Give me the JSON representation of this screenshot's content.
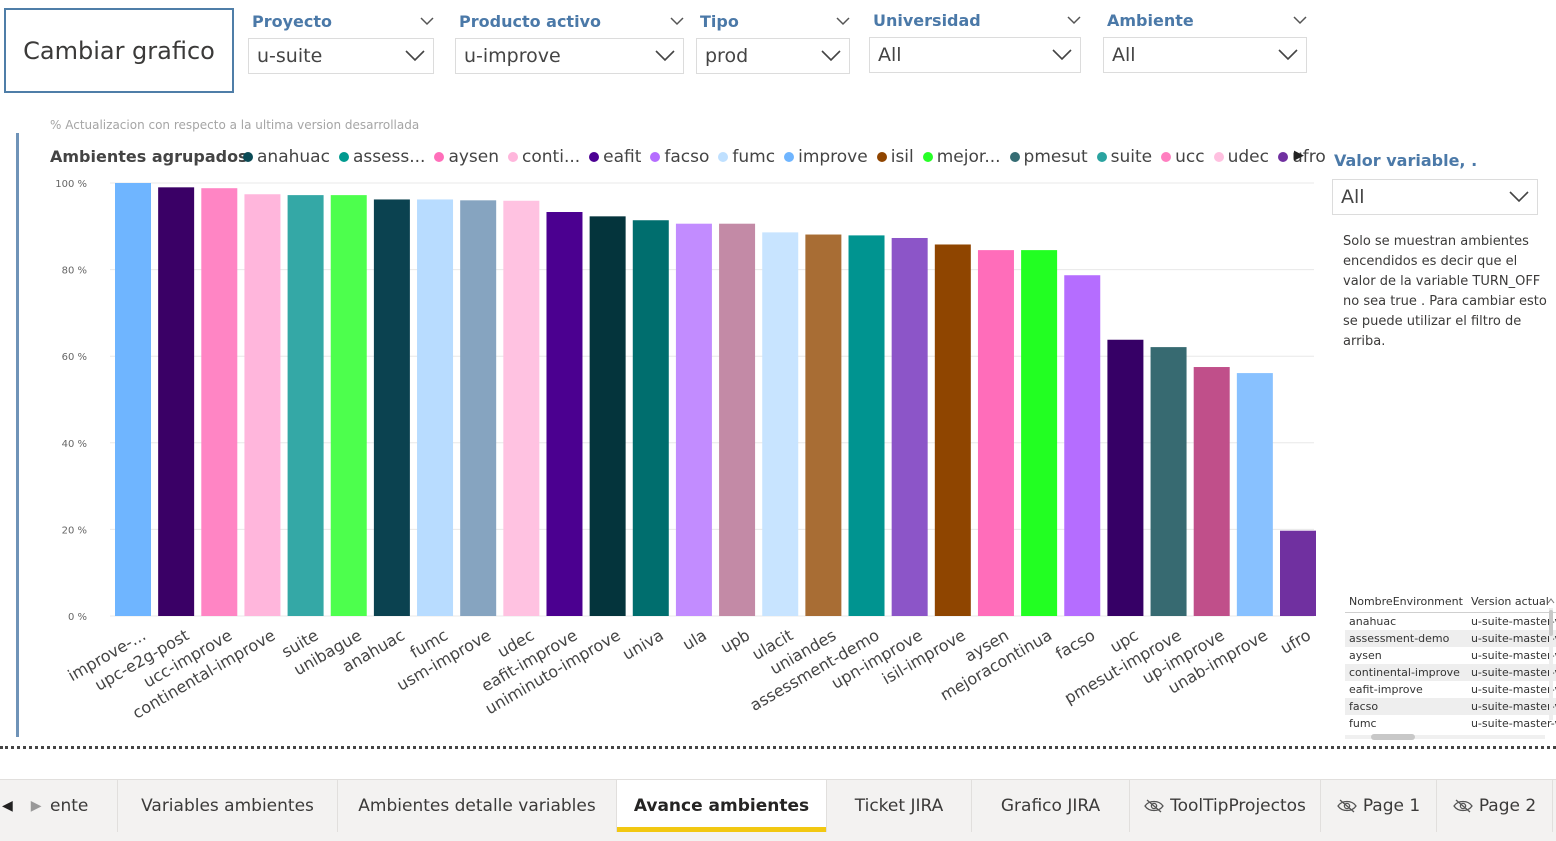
{
  "change_chart_button": "Cambiar grafico",
  "slicers": [
    {
      "title": "Proyecto",
      "value": "u-suite"
    },
    {
      "title": "Producto activo",
      "value": "u-improve"
    },
    {
      "title": "Tipo",
      "value": "prod"
    },
    {
      "title": "Universidad",
      "value": "All"
    },
    {
      "title": "Ambiente",
      "value": "All"
    }
  ],
  "chart": {
    "subtitle": "% Actualizacion con respecto a la ultima version desarrollada",
    "legend_title": "Ambientes agrupados",
    "legend": [
      {
        "label": "anahuac",
        "color": "#0b4a55"
      },
      {
        "label": "assess...",
        "color": "#009a8f"
      },
      {
        "label": "aysen",
        "color": "#ff6fba"
      },
      {
        "label": "conti...",
        "color": "#ffb6dc"
      },
      {
        "label": "eafit",
        "color": "#4b0093"
      },
      {
        "label": "facso",
        "color": "#b56dff"
      },
      {
        "label": "fumc",
        "color": "#bfe0ff"
      },
      {
        "label": "improve",
        "color": "#6fb5ff"
      },
      {
        "label": "isil",
        "color": "#8f4500"
      },
      {
        "label": "mejor...",
        "color": "#27ff27"
      },
      {
        "label": "pmesut",
        "color": "#356c73"
      },
      {
        "label": "suite",
        "color": "#2aa3a0"
      },
      {
        "label": "ucc",
        "color": "#ff7fc0"
      },
      {
        "label": "udec",
        "color": "#ffc0e0"
      },
      {
        "label": "ufro",
        "color": "#7030a0"
      }
    ]
  },
  "chart_data": {
    "type": "bar",
    "categories": [
      "improve-...",
      "upc-e2g-post",
      "ucc-improve",
      "continental-improve",
      "suite",
      "unibague",
      "anahuac",
      "fumc",
      "usm-improve",
      "udec",
      "eafit-improve",
      "uniminuto-improve",
      "univa",
      "ula",
      "upb",
      "ulacit",
      "uniandes",
      "assessment-demo",
      "upn-improve",
      "isil-improve",
      "aysen",
      "mejoracontinua",
      "facso",
      "upc",
      "pmesut-improve",
      "up-improve",
      "unab-improve",
      "ufro"
    ],
    "values": [
      100,
      99,
      98.8,
      97.4,
      97.2,
      97.2,
      96.2,
      96.2,
      96,
      95.9,
      93.3,
      92.3,
      91.4,
      90.6,
      90.6,
      88.6,
      88.1,
      87.9,
      87.3,
      85.8,
      84.5,
      84.5,
      78.7,
      63.8,
      62.1,
      57.5,
      56.1,
      19.7
    ],
    "colors": [
      "#6fb5ff",
      "#3a0066",
      "#ff85c4",
      "#ffb6dc",
      "#34a8a6",
      "#4dff4d",
      "#0b4250",
      "#b8dcff",
      "#86a4c0",
      "#ffc2e1",
      "#4b0090",
      "#04343c",
      "#006e6e",
      "#c28cff",
      "#c38aa6",
      "#c8e4ff",
      "#a86d34",
      "#009490",
      "#8c55c8",
      "#8f4500",
      "#ff6dba",
      "#22ff22",
      "#b56dff",
      "#360066",
      "#376a71",
      "#c04f8a",
      "#88c1ff",
      "#7030a0"
    ],
    "ylim": [
      0,
      100
    ],
    "yticks": [
      "0 %",
      "20 %",
      "40 %",
      "60 %",
      "80 %",
      "100 %"
    ],
    "xlabel": "",
    "ylabel": "",
    "grid": true
  },
  "side_panel": {
    "title": "Valor variable, .",
    "dropdown_value": "All",
    "note": "Solo se muestran ambientes encendidos es decir que el valor de la variable TURN_OFF no sea true . Para cambiar esto se puede utilizar el filtro de arriba."
  },
  "table": {
    "columns": [
      "NombreEnvironment",
      "Version actual"
    ],
    "rows": [
      [
        "anahuac",
        "u-suite-master-v"
      ],
      [
        "assessment-demo",
        "u-suite-master-v"
      ],
      [
        "aysen",
        "u-suite-master-v"
      ],
      [
        "continental-improve",
        "u-suite-master-v"
      ],
      [
        "eafit-improve",
        "u-suite-master-v"
      ],
      [
        "facso",
        "u-suite-master-v"
      ],
      [
        "fumc",
        "u-suite-master-v"
      ]
    ]
  },
  "tabs": [
    {
      "label": "ente",
      "hidden": false,
      "active": false
    },
    {
      "label": "Variables ambientes",
      "hidden": false,
      "active": false
    },
    {
      "label": "Ambientes detalle variables",
      "hidden": false,
      "active": false
    },
    {
      "label": "Avance ambientes",
      "hidden": false,
      "active": true
    },
    {
      "label": "Ticket JIRA",
      "hidden": false,
      "active": false
    },
    {
      "label": "Grafico JIRA",
      "hidden": false,
      "active": false
    },
    {
      "label": "ToolTipProjectos",
      "hidden": true,
      "active": false
    },
    {
      "label": "Page 1",
      "hidden": true,
      "active": false
    },
    {
      "label": "Page 2",
      "hidden": true,
      "active": false
    }
  ]
}
